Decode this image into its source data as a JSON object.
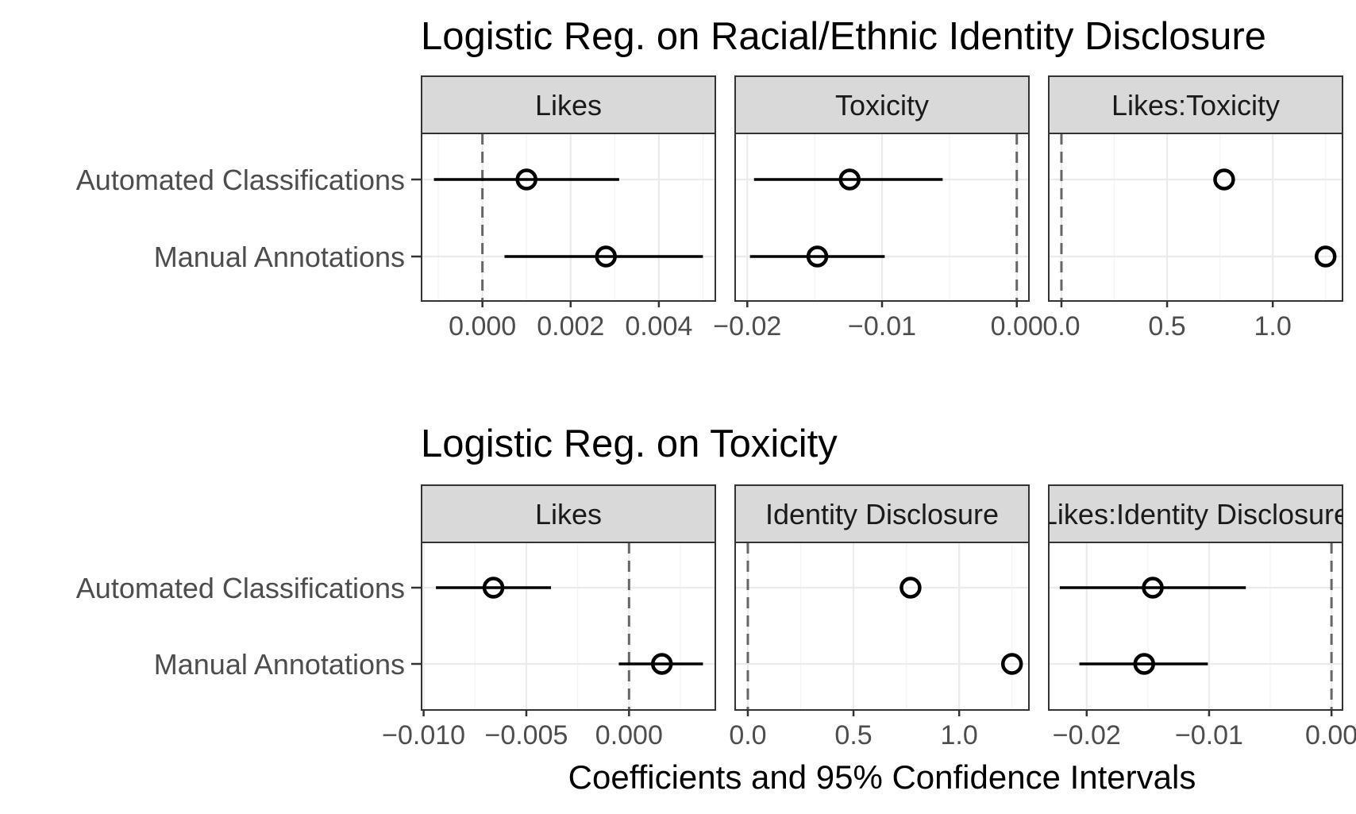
{
  "x_axis_label": "Coefficients and 95% Confidence Intervals",
  "chart_data": [
    {
      "type": "scatter",
      "title": "Logistic Reg. on Racial/Ethnic Identity Disclosure",
      "categories": [
        "Automated Classifications",
        "Manual Annotations"
      ],
      "facets": [
        {
          "name": "Likes",
          "xlim": [
            -0.00138,
            0.00528
          ],
          "ticks": [
            0.0,
            0.002,
            0.004
          ],
          "tick_labels": [
            "0.000",
            "0.002",
            "0.004"
          ],
          "points": [
            {
              "category": "Automated Classifications",
              "estimate": 0.001,
              "lower": -0.0011,
              "upper": 0.0031
            },
            {
              "category": "Manual Annotations",
              "estimate": 0.0028,
              "lower": 0.0005,
              "upper": 0.005
            }
          ]
        },
        {
          "name": "Toxicity",
          "xlim": [
            -0.0209,
            0.0009
          ],
          "ticks": [
            -0.02,
            -0.01,
            0.0
          ],
          "tick_labels": [
            "−0.02",
            "−0.01",
            "0.00"
          ],
          "points": [
            {
              "category": "Automated Classifications",
              "estimate": -0.0124,
              "lower": -0.0195,
              "upper": -0.0055
            },
            {
              "category": "Manual Annotations",
              "estimate": -0.0148,
              "lower": -0.0198,
              "upper": -0.0098
            }
          ]
        },
        {
          "name": "Likes:Toxicity",
          "xlim": [
            -0.06,
            1.33
          ],
          "ticks": [
            0.0,
            0.5,
            1.0
          ],
          "tick_labels": [
            "0.0",
            "0.5",
            "1.0"
          ],
          "points": [
            {
              "category": "Automated Classifications",
              "estimate": 0.77,
              "lower": 0.77,
              "upper": 0.77
            },
            {
              "category": "Manual Annotations",
              "estimate": 1.25,
              "lower": 1.25,
              "upper": 1.25
            }
          ]
        }
      ],
      "reference_line": 0,
      "grid": true
    },
    {
      "type": "scatter",
      "title": "Logistic Reg. on Toxicity",
      "categories": [
        "Automated Classifications",
        "Manual Annotations"
      ],
      "facets": [
        {
          "name": "Likes",
          "xlim": [
            -0.0101,
            0.0042
          ],
          "ticks": [
            -0.01,
            -0.005,
            0.0
          ],
          "tick_labels": [
            "−0.010",
            "−0.005",
            "0.000"
          ],
          "points": [
            {
              "category": "Automated Classifications",
              "estimate": -0.0066,
              "lower": -0.0094,
              "upper": -0.0038
            },
            {
              "category": "Manual Annotations",
              "estimate": 0.0016,
              "lower": -0.0005,
              "upper": 0.0036
            }
          ]
        },
        {
          "name": "Identity Disclosure",
          "xlim": [
            -0.06,
            1.33
          ],
          "ticks": [
            0.0,
            0.5,
            1.0
          ],
          "tick_labels": [
            "0.0",
            "0.5",
            "1.0"
          ],
          "points": [
            {
              "category": "Automated Classifications",
              "estimate": 0.77,
              "lower": 0.77,
              "upper": 0.77
            },
            {
              "category": "Manual Annotations",
              "estimate": 1.25,
              "lower": 1.25,
              "upper": 1.25
            }
          ]
        },
        {
          "name": "Likes:Identity Disclosure",
          "xlim": [
            -0.0231,
            0.0009
          ],
          "ticks": [
            -0.02,
            -0.01,
            0.0
          ],
          "tick_labels": [
            "−0.02",
            "−0.01",
            "0.00"
          ],
          "points": [
            {
              "category": "Automated Classifications",
              "estimate": -0.0146,
              "lower": -0.0222,
              "upper": -0.007
            },
            {
              "category": "Manual Annotations",
              "estimate": -0.0153,
              "lower": -0.0206,
              "upper": -0.0101
            }
          ]
        }
      ],
      "reference_line": 0,
      "grid": true
    }
  ]
}
